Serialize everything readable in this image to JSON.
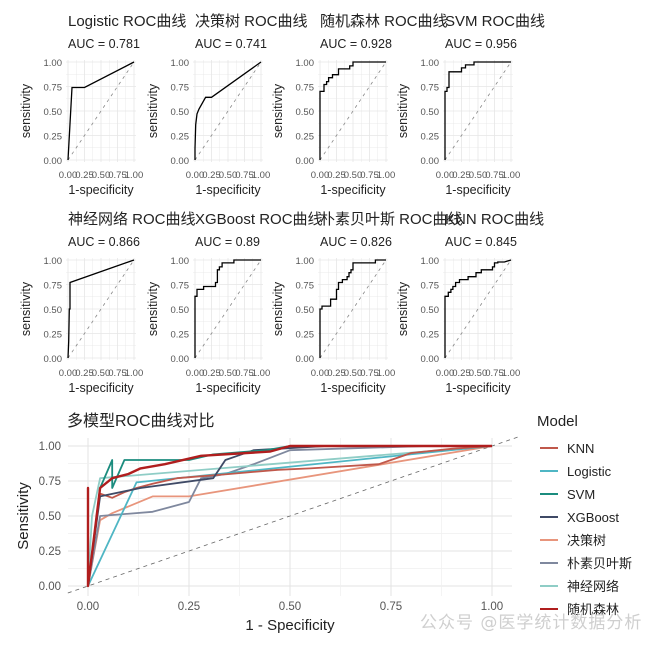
{
  "chart_data": [
    {
      "type": "line",
      "title": "Logistic ROC曲线",
      "subtitle": "AUC = 0.781",
      "xlabel": "1-specificity",
      "ylabel": "sensitivity",
      "xlim": [
        0,
        1
      ],
      "ylim": [
        0,
        1
      ],
      "x": [
        0,
        0.06,
        0.1,
        0.25,
        1.0
      ],
      "y": [
        0,
        0.74,
        0.74,
        0.74,
        1.0
      ]
    },
    {
      "type": "line",
      "title": "决策树 ROC曲线",
      "subtitle": "AUC = 0.741",
      "xlabel": "1-specificity",
      "ylabel": "sensitivity",
      "xlim": [
        0,
        1
      ],
      "ylim": [
        0,
        1
      ],
      "x": [
        0,
        0,
        0.01,
        0.03,
        0.06,
        0.16,
        0.25,
        1.0
      ],
      "y": [
        0,
        0.12,
        0.36,
        0.47,
        0.52,
        0.64,
        0.64,
        1.0
      ]
    },
    {
      "type": "line",
      "title": "随机森林 ROC曲线",
      "subtitle": "AUC = 0.928",
      "xlabel": "1-specificity",
      "ylabel": "sensitivity",
      "xlim": [
        0,
        1
      ],
      "ylim": [
        0,
        1
      ],
      "x": [
        0,
        0,
        0.06,
        0.06,
        0.1,
        0.1,
        0.13,
        0.13,
        0.19,
        0.19,
        0.28,
        0.28,
        0.45,
        0.45,
        0.5,
        0.5,
        1.0
      ],
      "y": [
        0,
        0.7,
        0.7,
        0.77,
        0.77,
        0.8,
        0.8,
        0.84,
        0.84,
        0.87,
        0.87,
        0.93,
        0.93,
        0.96,
        0.96,
        1.0,
        1.0
      ]
    },
    {
      "type": "line",
      "title": "SVM ROC曲线",
      "subtitle": "AUC = 0.956",
      "xlabel": "1-specificity",
      "ylabel": "sensitivity",
      "xlim": [
        0,
        1
      ],
      "ylim": [
        0,
        1
      ],
      "x": [
        0,
        0,
        0.03,
        0.03,
        0.06,
        0.06,
        0.09,
        0.09,
        0.25,
        0.25,
        0.31,
        0.31,
        0.44,
        0.44,
        1.0
      ],
      "y": [
        0,
        0.7,
        0.7,
        0.74,
        0.74,
        0.9,
        0.9,
        0.9,
        0.9,
        0.94,
        0.94,
        0.97,
        0.97,
        1.0,
        1.0
      ]
    },
    {
      "type": "line",
      "title": "神经网络 ROC曲线",
      "subtitle": "AUC = 0.866",
      "xlabel": "1-specificity",
      "ylabel": "sensitivity",
      "xlim": [
        0,
        1
      ],
      "ylim": [
        0,
        1
      ],
      "x": [
        0,
        0.01,
        0.02,
        0.03,
        0.03,
        1.0
      ],
      "y": [
        0,
        0.17,
        0.5,
        0.5,
        0.77,
        1.0
      ]
    },
    {
      "type": "line",
      "title": "XGBoost ROC曲线",
      "subtitle": "AUC = 0.89",
      "xlabel": "1-specificity",
      "ylabel": "sensitivity",
      "xlim": [
        0,
        1
      ],
      "ylim": [
        0,
        1
      ],
      "x": [
        0,
        0,
        0.03,
        0.03,
        0.13,
        0.13,
        0.31,
        0.31,
        0.34,
        0.34,
        0.37,
        0.37,
        0.41,
        0.41,
        0.59,
        0.59,
        1.0
      ],
      "y": [
        0,
        0.63,
        0.63,
        0.7,
        0.7,
        0.73,
        0.73,
        0.77,
        0.77,
        0.9,
        0.9,
        0.93,
        0.93,
        0.97,
        0.97,
        1.0,
        1.0
      ]
    },
    {
      "type": "line",
      "title": "朴素贝叶斯 ROC曲线",
      "subtitle": "AUC = 0.826",
      "xlabel": "1-specificity",
      "ylabel": "sensitivity",
      "xlim": [
        0,
        1
      ],
      "ylim": [
        0,
        1
      ],
      "x": [
        0,
        0,
        0.03,
        0.03,
        0.16,
        0.16,
        0.25,
        0.25,
        0.28,
        0.28,
        0.34,
        0.34,
        0.41,
        0.41,
        0.44,
        0.44,
        0.47,
        0.47,
        0.5,
        0.5,
        0.84,
        0.84,
        1.0
      ],
      "y": [
        0,
        0.5,
        0.5,
        0.53,
        0.53,
        0.6,
        0.6,
        0.7,
        0.7,
        0.77,
        0.77,
        0.8,
        0.8,
        0.83,
        0.83,
        0.87,
        0.87,
        0.9,
        0.9,
        0.97,
        0.97,
        1.0,
        1.0
      ]
    },
    {
      "type": "line",
      "title": "KNN ROC曲线",
      "subtitle": "AUC = 0.845",
      "xlabel": "1-specificity",
      "ylabel": "sensitivity",
      "xlim": [
        0,
        1
      ],
      "ylim": [
        0,
        1
      ],
      "x": [
        0,
        0,
        0.05,
        0.05,
        0.09,
        0.09,
        0.12,
        0.12,
        0.16,
        0.16,
        0.22,
        0.22,
        0.35,
        0.35,
        0.47,
        0.47,
        0.55,
        0.55,
        0.72,
        0.72,
        0.75,
        0.75,
        0.8,
        0.8,
        0.9,
        1.0
      ],
      "y": [
        0,
        0.63,
        0.63,
        0.67,
        0.67,
        0.7,
        0.7,
        0.73,
        0.73,
        0.77,
        0.77,
        0.8,
        0.8,
        0.83,
        0.83,
        0.87,
        0.87,
        0.9,
        0.9,
        0.93,
        0.93,
        0.97,
        0.97,
        0.98,
        0.98,
        1.0
      ]
    },
    {
      "type": "line",
      "title": "多模型ROC曲线对比",
      "xlabel": "1 - Specificity",
      "ylabel": "Sensitivity",
      "xlim": [
        0,
        1
      ],
      "ylim": [
        0,
        1
      ],
      "legend_title": "Model",
      "legend_position": "right",
      "series": [
        {
          "name": "KNN",
          "color": "#c0584b",
          "x": [
            0,
            0.03,
            0.06,
            0.09,
            0.12,
            0.16,
            0.22,
            0.35,
            0.47,
            0.55,
            0.72,
            0.75,
            0.8,
            0.9,
            1.0
          ],
          "y": [
            0,
            0.66,
            0.63,
            0.67,
            0.7,
            0.73,
            0.77,
            0.8,
            0.83,
            0.84,
            0.87,
            0.9,
            0.95,
            0.98,
            1.0
          ]
        },
        {
          "name": "Logistic",
          "color": "#4fb6c4",
          "x": [
            0,
            0.12,
            1.0
          ],
          "y": [
            0,
            0.74,
            1.0
          ]
        },
        {
          "name": "SVM",
          "color": "#1b8c7e",
          "x": [
            0,
            0.03,
            0.06,
            0.06,
            0.09,
            0.25,
            0.31,
            0.44,
            0.5,
            1.0
          ],
          "y": [
            0,
            0.7,
            0.9,
            0.7,
            0.9,
            0.9,
            0.94,
            0.97,
            1.0,
            1.0
          ]
        },
        {
          "name": "XGBoost",
          "color": "#3f4a66",
          "x": [
            0,
            0.03,
            0.13,
            0.31,
            0.34,
            0.37,
            0.41,
            0.59,
            1.0
          ],
          "y": [
            0,
            0.64,
            0.7,
            0.77,
            0.9,
            0.93,
            0.97,
            1.0,
            1.0
          ]
        },
        {
          "name": "决策树",
          "color": "#e8957c",
          "x": [
            0,
            0.03,
            0.06,
            0.16,
            0.25,
            1.0
          ],
          "y": [
            0,
            0.47,
            0.52,
            0.64,
            0.64,
            1.0
          ]
        },
        {
          "name": "朴素贝叶斯",
          "color": "#7f889e",
          "x": [
            0,
            0.03,
            0.16,
            0.25,
            0.28,
            0.34,
            0.41,
            0.5,
            0.84,
            1.0
          ],
          "y": [
            0,
            0.5,
            0.53,
            0.6,
            0.77,
            0.8,
            0.87,
            0.97,
            1.0,
            1.0
          ]
        },
        {
          "name": "神经网络",
          "color": "#8fcdc6",
          "x": [
            0,
            0.01,
            0.03,
            1.0
          ],
          "y": [
            0,
            0.5,
            0.77,
            1.0
          ]
        },
        {
          "name": "随机森林",
          "color": "#b01e1e",
          "x": [
            0,
            0,
            0,
            0.03,
            0.06,
            0.1,
            0.13,
            0.19,
            0.28,
            0.45,
            0.5,
            1.0
          ],
          "y": [
            0,
            0.7,
            0,
            0.7,
            0.77,
            0.8,
            0.84,
            0.87,
            0.93,
            0.96,
            1.0,
            1.0
          ]
        }
      ]
    }
  ],
  "small_panels": {
    "yticks": [
      "0.00",
      "0.25",
      "0.50",
      "0.75",
      "1.00"
    ],
    "xticks": [
      "0.00",
      "0.25",
      "0.50",
      "0.75",
      "1.00"
    ],
    "xlabel": "1-specificity",
    "ylabel": "sensitivity"
  },
  "main_chart": {
    "title": "多模型ROC曲线对比",
    "xlabel": "1 - Specificity",
    "ylabel": "Sensitivity",
    "xticks": [
      "0.00",
      "0.25",
      "0.50",
      "0.75",
      "1.00"
    ],
    "yticks": [
      "0.00",
      "0.25",
      "0.50",
      "0.75",
      "1.00"
    ],
    "legend_title": "Model"
  },
  "watermark": "公众号 @医学统计数据分析"
}
